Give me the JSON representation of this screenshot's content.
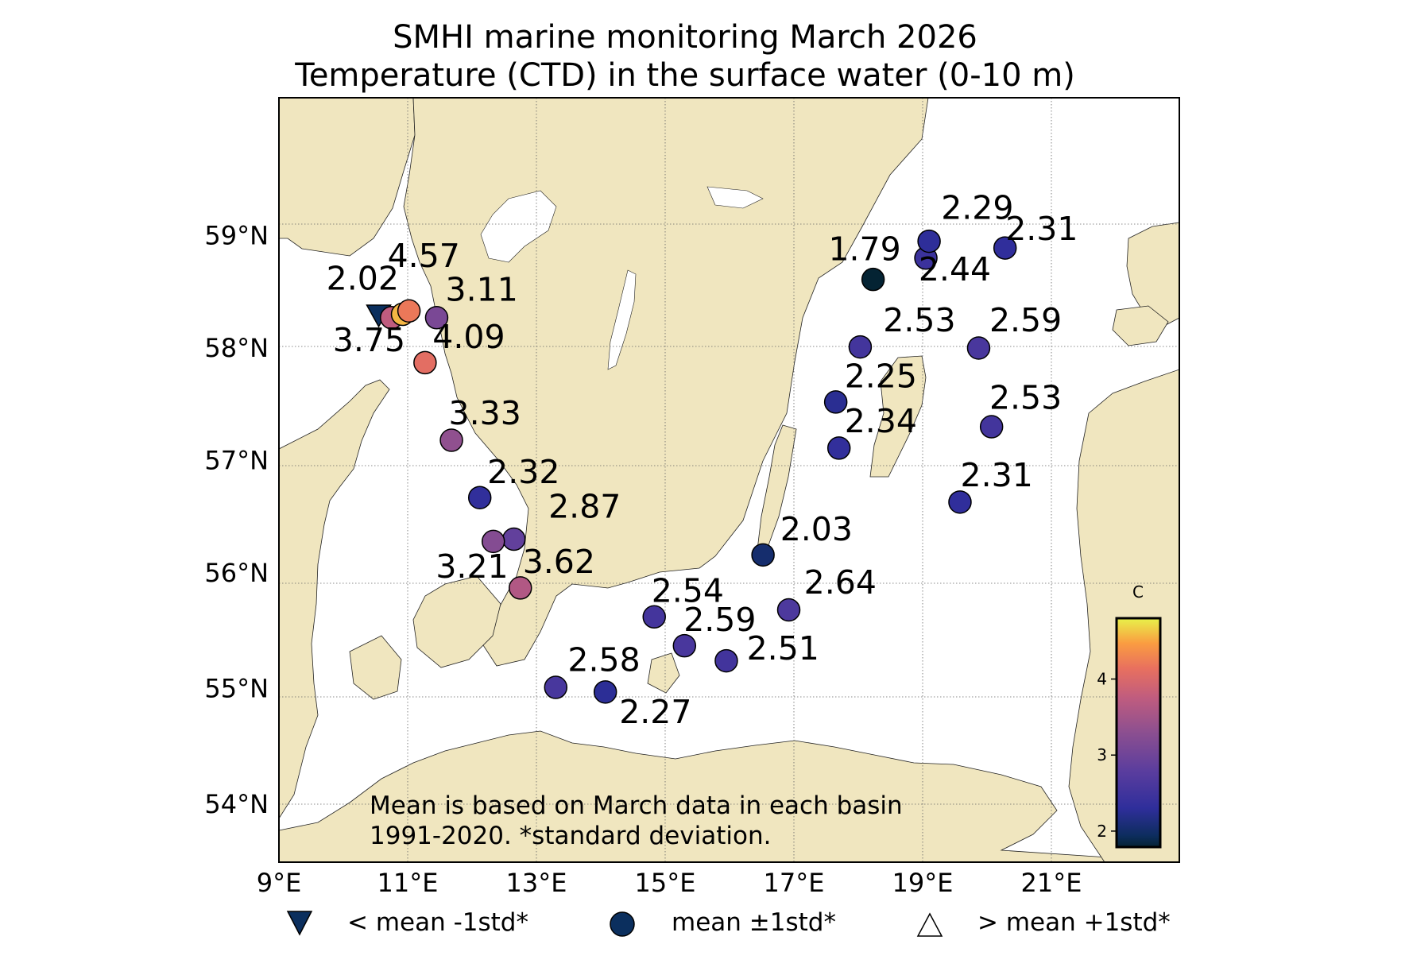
{
  "title": {
    "line1": "SMHI marine monitoring March 2026",
    "line2": "Temperature (CTD) in the surface water (0-10 m)"
  },
  "map": {
    "lon_range": [
      9,
      23
    ],
    "lat_range": [
      53.5,
      60
    ],
    "lat_ticks": [
      {
        "value": 54,
        "label": "54°N"
      },
      {
        "value": 55,
        "label": "55°N"
      },
      {
        "value": 56,
        "label": "56°N"
      },
      {
        "value": 57,
        "label": "57°N"
      },
      {
        "value": 58,
        "label": "58°N"
      },
      {
        "value": 59,
        "label": "59°N"
      }
    ],
    "lon_ticks": [
      {
        "value": 9,
        "label": "9°E"
      },
      {
        "value": 11,
        "label": "11°E"
      },
      {
        "value": 13,
        "label": "13°E"
      },
      {
        "value": 15,
        "label": "15°E"
      },
      {
        "value": 17,
        "label": "17°E"
      },
      {
        "value": 19,
        "label": "19°E"
      },
      {
        "value": 21,
        "label": "21°E"
      }
    ],
    "colors": {
      "land": "#f0e6bf",
      "sea": "#ffffff",
      "grid": "#555555",
      "marker_edge": "#000000"
    }
  },
  "chart_data": {
    "type": "scatter",
    "title": "SMHI marine monitoring March 2026 / Temperature (CTD) in the surface water (0-10 m)",
    "stations": [
      {
        "lon": 10.55,
        "lat": 58.29,
        "value": 2.02,
        "marker": "down-triangle"
      },
      {
        "lon": 10.75,
        "lat": 58.27,
        "value": 3.75,
        "marker": "circle"
      },
      {
        "lon": 10.92,
        "lat": 58.3,
        "value": 4.57,
        "marker": "circle"
      },
      {
        "lon": 11.02,
        "lat": 58.33,
        "value": 4.2,
        "marker": "circle"
      },
      {
        "lon": 11.45,
        "lat": 58.27,
        "value": 3.11,
        "marker": "circle"
      },
      {
        "lon": 11.27,
        "lat": 57.87,
        "value": 4.09,
        "marker": "circle"
      },
      {
        "lon": 11.68,
        "lat": 57.18,
        "value": 3.33,
        "marker": "circle"
      },
      {
        "lon": 12.12,
        "lat": 56.67,
        "value": 2.32,
        "marker": "circle"
      },
      {
        "lon": 12.65,
        "lat": 56.3,
        "value": 2.87,
        "marker": "circle"
      },
      {
        "lon": 12.33,
        "lat": 56.28,
        "value": 3.21,
        "marker": "circle"
      },
      {
        "lon": 12.75,
        "lat": 55.87,
        "value": 3.62,
        "marker": "circle"
      },
      {
        "lon": 14.83,
        "lat": 55.62,
        "value": 2.54,
        "marker": "circle"
      },
      {
        "lon": 15.3,
        "lat": 55.37,
        "value": 2.59,
        "marker": "circle"
      },
      {
        "lon": 15.95,
        "lat": 55.24,
        "value": 2.51,
        "marker": "circle"
      },
      {
        "lon": 13.3,
        "lat": 55.01,
        "value": 2.58,
        "marker": "circle"
      },
      {
        "lon": 14.07,
        "lat": 54.97,
        "value": 2.27,
        "marker": "circle"
      },
      {
        "lon": 16.52,
        "lat": 56.16,
        "value": 2.03,
        "marker": "circle"
      },
      {
        "lon": 16.92,
        "lat": 55.68,
        "value": 2.64,
        "marker": "circle"
      },
      {
        "lon": 17.65,
        "lat": 57.52,
        "value": 2.25,
        "marker": "circle"
      },
      {
        "lon": 17.7,
        "lat": 57.11,
        "value": 2.34,
        "marker": "circle"
      },
      {
        "lon": 18.03,
        "lat": 58.01,
        "value": 2.53,
        "marker": "circle"
      },
      {
        "lon": 18.23,
        "lat": 58.61,
        "value": 1.79,
        "marker": "circle"
      },
      {
        "lon": 19.05,
        "lat": 58.8,
        "value": 2.44,
        "marker": "circle"
      },
      {
        "lon": 19.1,
        "lat": 58.95,
        "value": 2.29,
        "marker": "circle"
      },
      {
        "lon": 20.28,
        "lat": 58.89,
        "value": 2.31,
        "marker": "circle"
      },
      {
        "lon": 19.87,
        "lat": 58.0,
        "value": 2.59,
        "marker": "circle"
      },
      {
        "lon": 20.07,
        "lat": 57.3,
        "value": 2.53,
        "marker": "circle"
      },
      {
        "lon": 19.58,
        "lat": 56.63,
        "value": 2.31,
        "marker": "circle"
      }
    ],
    "labels": [
      {
        "text": "2.02",
        "lon": 10.3,
        "lat": 58.52
      },
      {
        "text": "4.57",
        "lon": 11.25,
        "lat": 58.72
      },
      {
        "text": "3.11",
        "lon": 12.15,
        "lat": 58.42
      },
      {
        "text": "3.75",
        "lon": 10.4,
        "lat": 57.97
      },
      {
        "text": "4.09",
        "lon": 11.95,
        "lat": 58.0
      },
      {
        "text": "3.33",
        "lon": 12.2,
        "lat": 57.32
      },
      {
        "text": "2.32",
        "lon": 12.8,
        "lat": 56.8
      },
      {
        "text": "2.87",
        "lon": 13.75,
        "lat": 56.49
      },
      {
        "text": "3.21",
        "lon": 12.0,
        "lat": 55.96
      },
      {
        "text": "3.62",
        "lon": 13.35,
        "lat": 56.0
      },
      {
        "text": "2.54",
        "lon": 15.35,
        "lat": 55.75
      },
      {
        "text": "2.59",
        "lon": 15.85,
        "lat": 55.5
      },
      {
        "text": "2.51",
        "lon": 16.83,
        "lat": 55.25
      },
      {
        "text": "2.58",
        "lon": 14.05,
        "lat": 55.15
      },
      {
        "text": "2.27",
        "lon": 14.85,
        "lat": 54.7
      },
      {
        "text": "2.03",
        "lon": 17.35,
        "lat": 56.29
      },
      {
        "text": "2.64",
        "lon": 17.72,
        "lat": 55.82
      },
      {
        "text": "2.25",
        "lon": 18.35,
        "lat": 57.65
      },
      {
        "text": "2.34",
        "lon": 18.35,
        "lat": 57.25
      },
      {
        "text": "2.53",
        "lon": 18.95,
        "lat": 58.15
      },
      {
        "text": "1.79",
        "lon": 18.1,
        "lat": 58.78
      },
      {
        "text": "2.44",
        "lon": 19.5,
        "lat": 58.6
      },
      {
        "text": "2.29",
        "lon": 19.85,
        "lat": 59.15
      },
      {
        "text": "2.31",
        "lon": 20.85,
        "lat": 58.96
      },
      {
        "text": "2.59",
        "lon": 20.6,
        "lat": 58.15
      },
      {
        "text": "2.53",
        "lon": 20.6,
        "lat": 57.46
      },
      {
        "text": "2.31",
        "lon": 20.15,
        "lat": 56.77
      }
    ],
    "colorbar": {
      "unit": "C",
      "range": [
        1.79,
        4.8
      ],
      "ticks": [
        2,
        3,
        4
      ],
      "colormap": "thermal"
    }
  },
  "note": {
    "line1": "Mean is based on March data in each basin",
    "line2": "1991-2020. *standard deviation."
  },
  "legend": [
    {
      "symbol": "down-triangle",
      "label": "< mean -1std*",
      "color": "#0b2f5e"
    },
    {
      "symbol": "circle",
      "label": "mean ±1std*",
      "color": "#0b2f5e"
    },
    {
      "symbol": "up-triangle",
      "label": "> mean +1std*",
      "color": "#ffffff"
    }
  ]
}
